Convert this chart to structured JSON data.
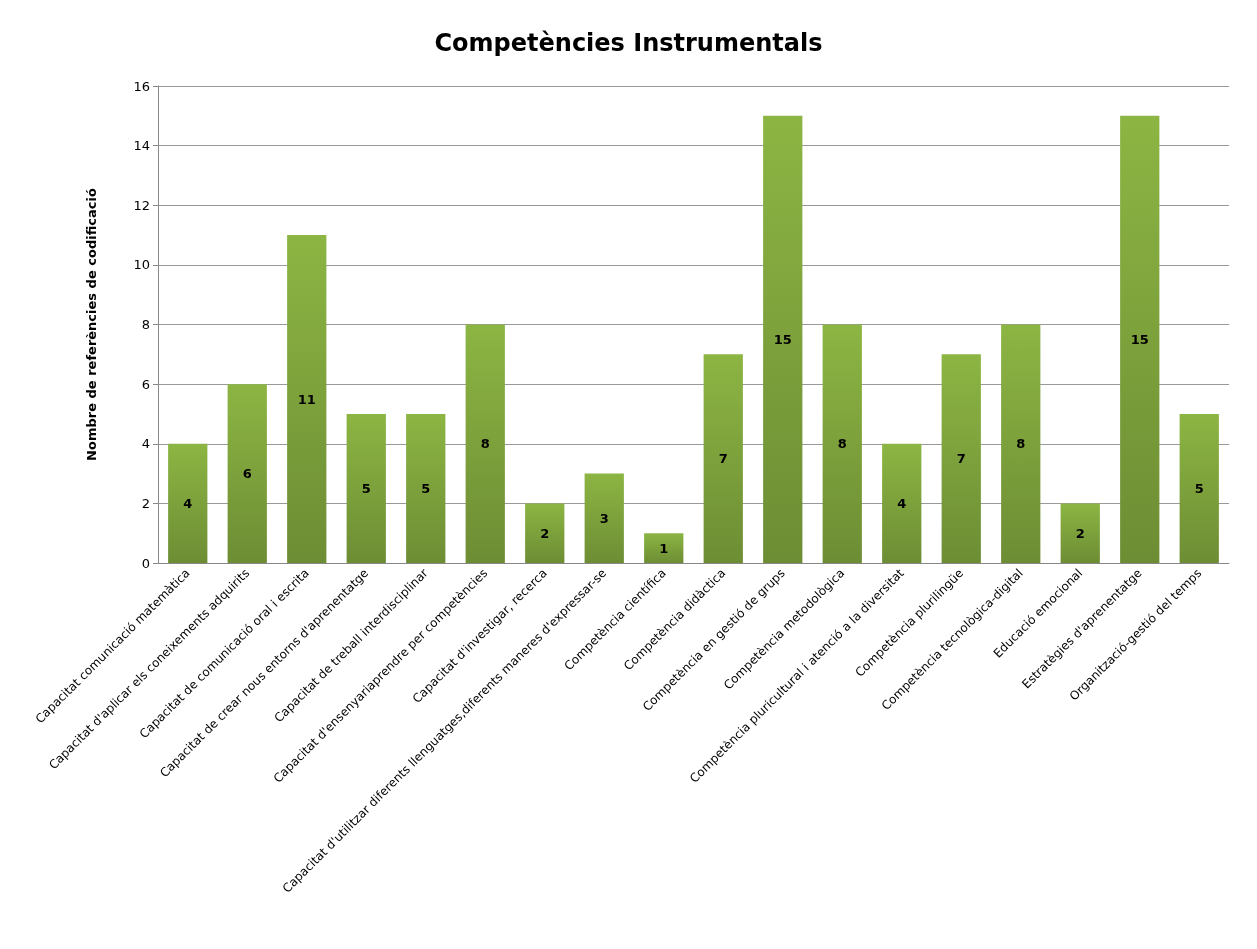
{
  "chart_data": {
    "type": "bar",
    "title": "Competències Instrumentals",
    "ylabel": "Nombre de referències de codificació",
    "categories": [
      "Capacitat comunicació matemàtica",
      "Capacitat d'aplicar els coneixements adquirits",
      "Capacitat de comunicació oral i escrita",
      "Capacitat de crear nous entorns d'aprenentatge",
      "Capacitat de treball interdisciplinar",
      "Capacitat d'ensenyariaprendre per competències",
      "Capacitat d'investigar, recerca",
      "Capacitat d'utilitzar diferents llenguatges,diferents maneres d'expressar-se",
      "Competència científica",
      "Competència didàctica",
      "Competència en gestió de grups",
      "Competència metodològica",
      "Competència pluricultural i atenció a la diversitat",
      "Competència plurilingüe",
      "Competència tecnològica-digital",
      "Educació emocional",
      "Estratègies d'aprenentatge",
      "Organització-gestió del temps"
    ],
    "values": [
      4,
      6,
      11,
      5,
      5,
      8,
      2,
      3,
      1,
      7,
      15,
      8,
      4,
      7,
      8,
      2,
      15,
      5
    ],
    "color": "#8cb543",
    "ylim": [
      0,
      16
    ],
    "yticks": [
      0,
      2,
      4,
      6,
      8,
      10,
      12,
      14,
      16
    ],
    "grid": "y",
    "data_labels": true
  }
}
